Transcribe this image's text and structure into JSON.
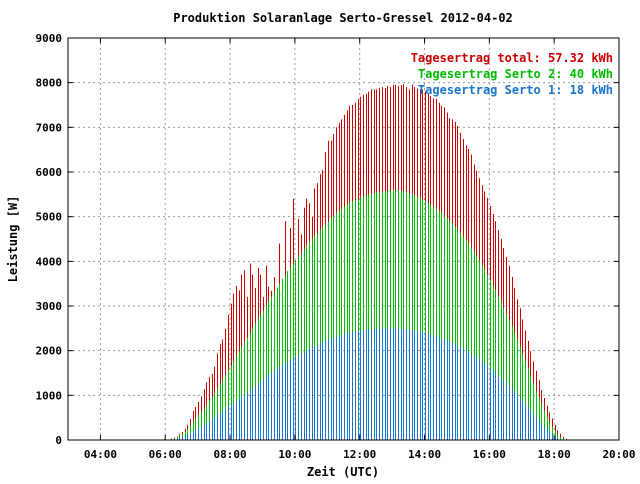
{
  "chart_data": {
    "type": "bar",
    "title": "Produktion Solaranlage Serto-Gressel 2012-04-02",
    "xlabel": "Zeit (UTC)",
    "ylabel": "Leistung [W]",
    "xlim": [
      3.0,
      20.0
    ],
    "ylim": [
      0,
      9000
    ],
    "x_ticks": [
      {
        "value": 4,
        "label": "04:00"
      },
      {
        "value": 6,
        "label": "06:00"
      },
      {
        "value": 8,
        "label": "08:00"
      },
      {
        "value": 10,
        "label": "10:00"
      },
      {
        "value": 12,
        "label": "12:00"
      },
      {
        "value": 14,
        "label": "14:00"
      },
      {
        "value": 16,
        "label": "16:00"
      },
      {
        "value": 18,
        "label": "18:00"
      },
      {
        "value": 20,
        "label": "20:00"
      }
    ],
    "y_ticks": [
      0,
      1000,
      2000,
      3000,
      4000,
      5000,
      6000,
      7000,
      8000,
      9000
    ],
    "grid": true,
    "legend_position": "top-right",
    "bar_start_hour": 5.1,
    "bar_interval_minutes": 5,
    "series": [
      {
        "name": "Tagesertrag total: 57.32 kWh",
        "color": "#cc0000",
        "values": [
          0,
          0,
          0,
          0,
          0,
          0,
          0,
          0,
          0,
          0,
          0,
          0,
          10,
          40,
          60,
          80,
          140,
          180,
          250,
          340,
          470,
          650,
          740,
          850,
          980,
          1140,
          1290,
          1410,
          1480,
          1640,
          1940,
          2150,
          2250,
          2490,
          2800,
          3050,
          3280,
          3450,
          3350,
          3700,
          3800,
          3200,
          3950,
          3700,
          3400,
          3850,
          3700,
          3200,
          3900,
          3430,
          3340,
          3650,
          3400,
          4400,
          3550,
          4900,
          3400,
          4750,
          5400,
          3600,
          4950,
          4600,
          5200,
          5400,
          5300,
          5000,
          5630,
          5750,
          5950,
          6050,
          6450,
          6700,
          6700,
          6850,
          7000,
          7100,
          7180,
          7280,
          7380,
          7480,
          7500,
          7550,
          7630,
          7680,
          7730,
          7750,
          7800,
          7850,
          7850,
          7850,
          7880,
          7900,
          7880,
          7920,
          7900,
          7950,
          7950,
          7920,
          7940,
          7970,
          7900,
          7850,
          7960,
          7900,
          7870,
          7850,
          7840,
          7800,
          7750,
          7700,
          7650,
          7640,
          7550,
          7480,
          7450,
          7330,
          7200,
          7180,
          7120,
          7030,
          6880,
          6740,
          6600,
          6520,
          6390,
          6170,
          6030,
          5860,
          5700,
          5570,
          5420,
          5240,
          5060,
          4900,
          4700,
          4500,
          4300,
          4100,
          3900,
          3650,
          3400,
          3150,
          2950,
          2700,
          2450,
          2220,
          1990,
          1760,
          1550,
          1340,
          1120,
          940,
          770,
          620,
          480,
          340,
          220,
          140,
          70,
          30,
          0,
          0,
          0,
          0,
          0,
          0,
          0,
          0
        ]
      },
      {
        "name": "Tagesertrag Serto 2: 40 kWh",
        "color": "#00bb00",
        "values": [
          0,
          0,
          0,
          0,
          0,
          0,
          0,
          0,
          0,
          0,
          0,
          0,
          10,
          30,
          40,
          60,
          100,
          130,
          180,
          250,
          330,
          400,
          480,
          550,
          630,
          700,
          790,
          880,
          960,
          1060,
          1160,
          1250,
          1360,
          1460,
          1560,
          1660,
          1770,
          1890,
          1990,
          2090,
          2190,
          2290,
          2390,
          2500,
          2620,
          2720,
          2810,
          2900,
          3010,
          3130,
          3210,
          3310,
          3410,
          3510,
          3610,
          3680,
          3780,
          3860,
          3950,
          4030,
          4110,
          4190,
          4280,
          4370,
          4440,
          4510,
          4580,
          4640,
          4700,
          4770,
          4830,
          4890,
          4960,
          5020,
          5080,
          5130,
          5180,
          5230,
          5270,
          5320,
          5350,
          5380,
          5400,
          5430,
          5460,
          5480,
          5500,
          5520,
          5530,
          5540,
          5550,
          5560,
          5570,
          5580,
          5590,
          5600,
          5590,
          5590,
          5580,
          5570,
          5550,
          5530,
          5510,
          5480,
          5450,
          5420,
          5380,
          5350,
          5310,
          5270,
          5230,
          5180,
          5130,
          5080,
          5030,
          4970,
          4910,
          4850,
          4780,
          4710,
          4640,
          4560,
          4480,
          4400,
          4310,
          4220,
          4120,
          4020,
          3920,
          3810,
          3700,
          3590,
          3470,
          3350,
          3230,
          3100,
          2960,
          2830,
          2690,
          2550,
          2400,
          2240,
          2080,
          1920,
          1760,
          1600,
          1430,
          1270,
          1100,
          950,
          800,
          660,
          530,
          410,
          300,
          210,
          130,
          70,
          30,
          0,
          0,
          0,
          0,
          0,
          0,
          0,
          0,
          0
        ]
      },
      {
        "name": "Tagesertrag Serto 1: 18 kWh",
        "color": "#1874cd",
        "values": [
          0,
          0,
          0,
          0,
          0,
          0,
          0,
          0,
          0,
          0,
          0,
          0,
          10,
          20,
          20,
          30,
          50,
          60,
          80,
          110,
          150,
          190,
          230,
          260,
          300,
          340,
          380,
          420,
          470,
          520,
          560,
          600,
          650,
          700,
          740,
          780,
          830,
          880,
          920,
          960,
          1010,
          1060,
          1110,
          1160,
          1210,
          1260,
          1310,
          1360,
          1410,
          1460,
          1500,
          1540,
          1590,
          1630,
          1670,
          1710,
          1750,
          1790,
          1830,
          1860,
          1900,
          1940,
          1970,
          2010,
          2040,
          2070,
          2100,
          2130,
          2160,
          2190,
          2220,
          2240,
          2270,
          2290,
          2310,
          2330,
          2350,
          2370,
          2390,
          2400,
          2420,
          2430,
          2440,
          2450,
          2460,
          2470,
          2480,
          2480,
          2490,
          2490,
          2490,
          2500,
          2500,
          2500,
          2500,
          2500,
          2500,
          2490,
          2490,
          2480,
          2480,
          2470,
          2460,
          2450,
          2440,
          2430,
          2410,
          2400,
          2380,
          2360,
          2340,
          2320,
          2300,
          2280,
          2250,
          2230,
          2200,
          2170,
          2140,
          2110,
          2080,
          2040,
          2010,
          1970,
          1930,
          1890,
          1850,
          1800,
          1760,
          1710,
          1660,
          1610,
          1560,
          1500,
          1450,
          1390,
          1330,
          1270,
          1200,
          1140,
          1070,
          1000,
          930,
          860,
          790,
          720,
          640,
          570,
          500,
          430,
          360,
          300,
          240,
          180,
          130,
          90,
          50,
          20,
          10,
          0,
          0,
          0,
          0,
          0,
          0,
          0,
          0,
          0
        ]
      }
    ]
  }
}
